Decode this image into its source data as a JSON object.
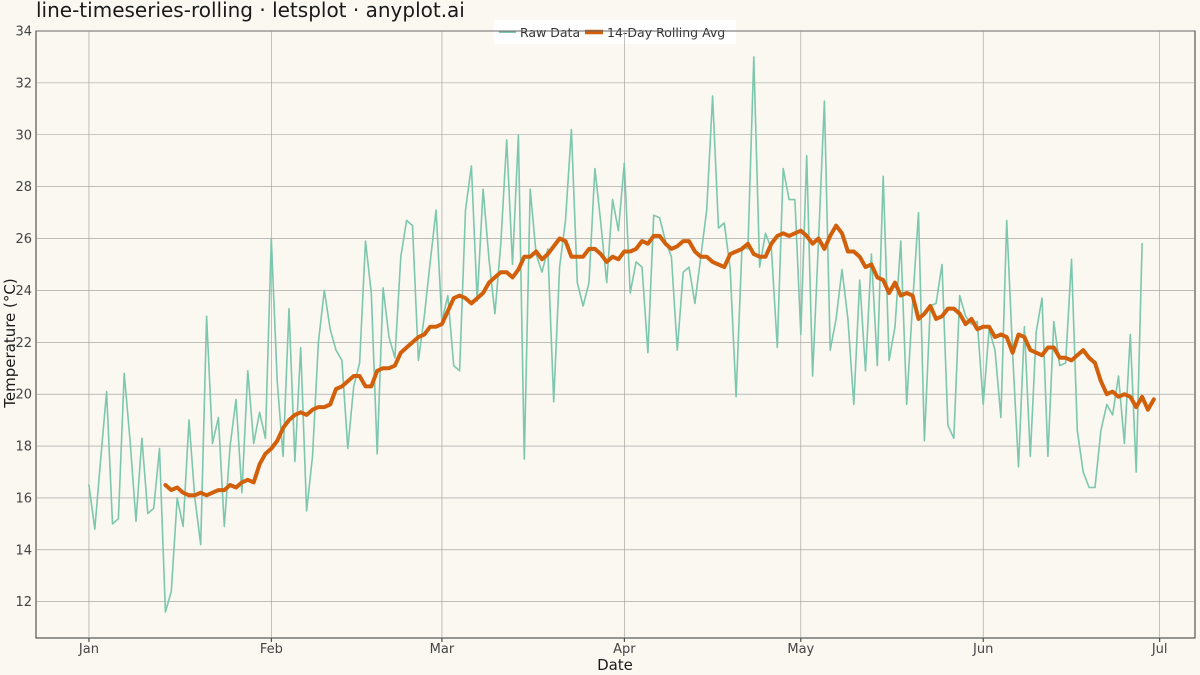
{
  "chart_data": {
    "type": "line",
    "title": "line-timeseries-rolling · letsplot · anyplot.ai",
    "xlabel": "Date",
    "ylabel": "Temperature (°C)",
    "ylim": [
      10.6,
      34
    ],
    "y_ticks": [
      12,
      14,
      16,
      18,
      20,
      22,
      24,
      26,
      28,
      30,
      32,
      34
    ],
    "x_ticks": [
      {
        "label": "Jan",
        "date": "2024-01-01"
      },
      {
        "label": "Feb",
        "date": "2024-02-01"
      },
      {
        "label": "Mar",
        "date": "2024-03-01"
      },
      {
        "label": "Apr",
        "date": "2024-04-01"
      },
      {
        "label": "May",
        "date": "2024-05-01"
      },
      {
        "label": "Jun",
        "date": "2024-06-01"
      },
      {
        "label": "Jul",
        "date": "2024-07-01"
      }
    ],
    "xlim": [
      "2023-12-23",
      "2024-07-07"
    ],
    "grid": true,
    "legend_position": "top",
    "colors": {
      "background": "#FAF8F1",
      "raw": "#7CC7AE",
      "rolling": "#D2600B",
      "grid": "#9A9A9A",
      "axis": "#333333"
    },
    "series": [
      {
        "name": "Raw Data",
        "start_date": "2024-01-01",
        "values": [
          16.5,
          14.8,
          17.5,
          20.1,
          15.0,
          15.2,
          20.8,
          18.2,
          15.1,
          18.3,
          15.4,
          15.6,
          17.9,
          11.6,
          12.4,
          16.0,
          14.9,
          19.0,
          16.0,
          14.2,
          23.0,
          18.1,
          19.1,
          14.9,
          18.0,
          19.8,
          16.2,
          20.9,
          18.1,
          19.3,
          18.3,
          26.0,
          20.5,
          17.6,
          23.3,
          17.4,
          21.8,
          15.5,
          17.6,
          22.0,
          24.0,
          22.5,
          21.7,
          21.3,
          17.9,
          20.3,
          21.2,
          25.9,
          23.9,
          17.7,
          24.1,
          22.2,
          21.4,
          25.3,
          26.7,
          26.5,
          21.3,
          23.0,
          25.1,
          27.1,
          22.8,
          23.8,
          21.1,
          20.9,
          27.1,
          28.8,
          23.6,
          27.9,
          25.2,
          23.1,
          25.8,
          29.8,
          25.0,
          30.0,
          17.5,
          27.9,
          25.4,
          24.7,
          25.6,
          19.7,
          24.9,
          26.7,
          30.2,
          24.3,
          23.4,
          24.3,
          28.7,
          26.6,
          24.3,
          27.5,
          26.3,
          28.9,
          23.9,
          25.1,
          24.9,
          21.6,
          26.9,
          26.8,
          25.9,
          25.3,
          21.7,
          24.7,
          24.9,
          23.5,
          25.3,
          27.1,
          31.5,
          26.4,
          26.6,
          24.8,
          19.9,
          25.7,
          25.6,
          33.0,
          24.9,
          26.2,
          25.6,
          21.8,
          28.7,
          27.5,
          27.5,
          22.3,
          29.2,
          20.7,
          25.9,
          31.3,
          21.7,
          22.9,
          24.8,
          22.9,
          19.6,
          24.4,
          20.9,
          25.4,
          21.1,
          28.4,
          21.3,
          22.6,
          25.9,
          19.6,
          23.5,
          27.0,
          18.2,
          23.4,
          23.5,
          25.0,
          18.8,
          18.3,
          23.8,
          23.0,
          22.7,
          22.8,
          19.6,
          22.5,
          21.7,
          19.1,
          26.7,
          21.6,
          17.2,
          22.6,
          17.6,
          22.4,
          23.7,
          17.6,
          22.8,
          21.1,
          21.2,
          25.2,
          18.6,
          17.0,
          16.4,
          16.4,
          18.6,
          19.6,
          19.2,
          20.7,
          18.1,
          22.3,
          17.0,
          25.8
        ]
      },
      {
        "name": "14-Day Rolling Avg",
        "start_date": "2024-01-14",
        "values": [
          16.5,
          16.3,
          16.4,
          16.2,
          16.1,
          16.1,
          16.2,
          16.1,
          16.2,
          16.3,
          16.3,
          16.5,
          16.4,
          16.6,
          16.7,
          16.6,
          17.3,
          17.7,
          17.9,
          18.2,
          18.7,
          19.0,
          19.2,
          19.3,
          19.2,
          19.4,
          19.5,
          19.5,
          19.6,
          20.2,
          20.3,
          20.5,
          20.7,
          20.7,
          20.3,
          20.3,
          20.9,
          21.0,
          21.0,
          21.1,
          21.6,
          21.8,
          22.0,
          22.2,
          22.3,
          22.6,
          22.6,
          22.7,
          23.2,
          23.7,
          23.8,
          23.7,
          23.5,
          23.7,
          23.9,
          24.3,
          24.5,
          24.7,
          24.7,
          24.5,
          24.8,
          25.3,
          25.3,
          25.5,
          25.2,
          25.4,
          25.7,
          26.0,
          25.9,
          25.3,
          25.3,
          25.3,
          25.6,
          25.6,
          25.4,
          25.1,
          25.3,
          25.2,
          25.5,
          25.5,
          25.6,
          25.9,
          25.8,
          26.1,
          26.1,
          25.8,
          25.6,
          25.7,
          25.9,
          25.9,
          25.5,
          25.3,
          25.3,
          25.1,
          25.0,
          24.9,
          25.4,
          25.5,
          25.6,
          25.8,
          25.4,
          25.3,
          25.3,
          25.8,
          26.1,
          26.2,
          26.1,
          26.2,
          26.3,
          26.1,
          25.8,
          26.0,
          25.6,
          26.1,
          26.5,
          26.2,
          25.5,
          25.5,
          25.3,
          24.9,
          25.0,
          24.5,
          24.4,
          23.9,
          24.3,
          23.8,
          23.9,
          23.8,
          22.9,
          23.1,
          23.4,
          22.9,
          23.0,
          23.3,
          23.3,
          23.1,
          22.7,
          22.9,
          22.5,
          22.6,
          22.6,
          22.2,
          22.3,
          22.2,
          21.6,
          22.3,
          22.2,
          21.7,
          21.6,
          21.5,
          21.8,
          21.8,
          21.4,
          21.4,
          21.3,
          21.5,
          21.7,
          21.4,
          21.2,
          20.5,
          20.0,
          20.1,
          19.9,
          20.0,
          19.9,
          19.5,
          19.9,
          19.4,
          19.8
        ]
      }
    ]
  }
}
